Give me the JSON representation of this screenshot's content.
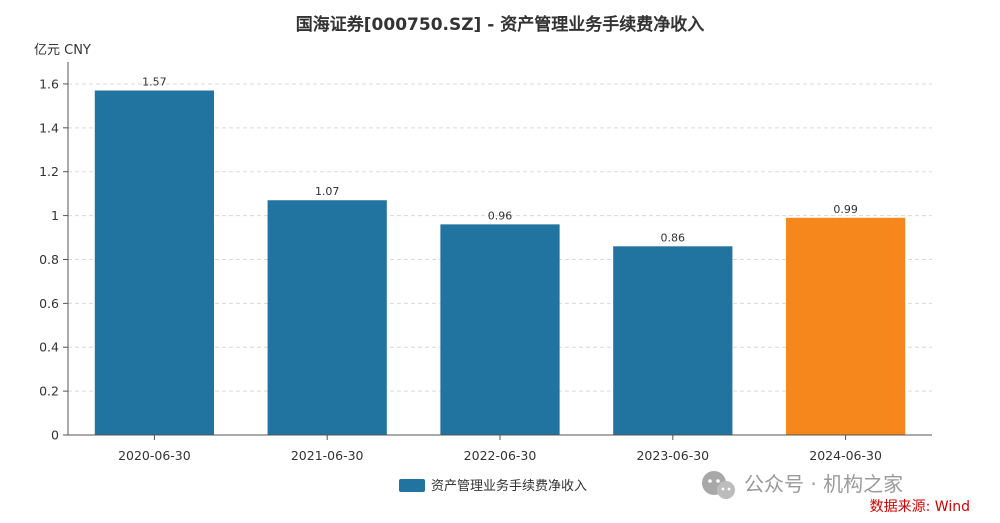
{
  "chart_data": {
    "type": "bar",
    "title": "国海证券[000750.SZ] - 资产管理业务手续费净收入",
    "ylabel": "亿元  CNY",
    "xlabel": "",
    "categories": [
      "2020-06-30",
      "2021-06-30",
      "2022-06-30",
      "2023-06-30",
      "2024-06-30"
    ],
    "series": [
      {
        "name": "资产管理业务手续费净收入",
        "values": [
          1.57,
          1.07,
          0.96,
          0.86,
          0.99
        ],
        "color": "#21749f",
        "highlight_color": "#f5871c",
        "highlight_index": 4
      }
    ],
    "data_labels": [
      "1.57",
      "1.07",
      "0.96",
      "0.86",
      "0.99"
    ],
    "ylim": [
      0,
      1.7
    ],
    "yticks": [
      0,
      0.2,
      0.4,
      0.6,
      0.8,
      1,
      1.2,
      1.4,
      1.6
    ],
    "ytick_labels": [
      "0",
      "0.2",
      "0.4",
      "0.6",
      "0.8",
      "1",
      "1.2",
      "1.4",
      "1.6"
    ],
    "grid": true,
    "legend_position": "bottom-center"
  },
  "watermark": {
    "text": "公众号 · 机构之家",
    "icon": "wechat-icon"
  },
  "source": {
    "text": "数据来源: Wind",
    "color": "#d40000"
  }
}
